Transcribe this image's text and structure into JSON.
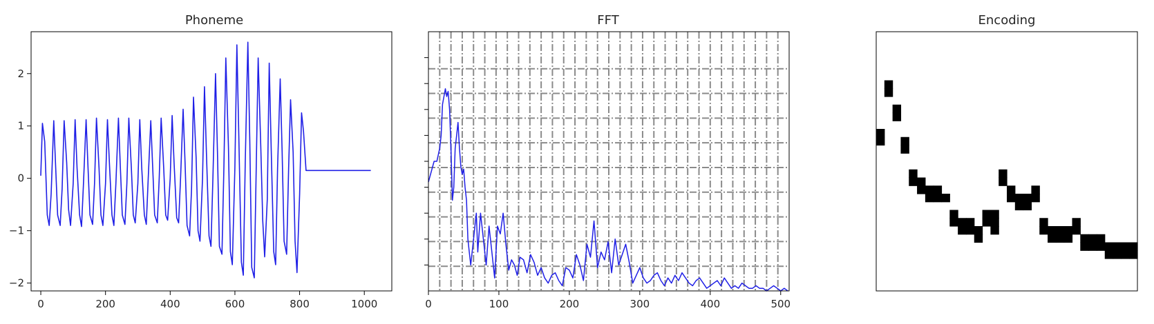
{
  "chart_data": [
    {
      "type": "line",
      "title": "Phoneme",
      "xlabel": "",
      "ylabel": "",
      "xlim": [
        -30,
        1085
      ],
      "ylim": [
        -2.15,
        2.8
      ],
      "xticks": [
        0,
        200,
        400,
        600,
        800,
        1000
      ],
      "yticks": [
        -2,
        -1,
        0,
        1,
        2
      ],
      "xtick_labels": [
        "0",
        "200",
        "400",
        "600",
        "800",
        "1000"
      ],
      "ytick_labels": [
        "−2",
        "−1",
        "0",
        "1",
        "2"
      ],
      "grid": false,
      "line_color": "#1f1fe6",
      "series": [
        {
          "x": [
            0,
            5,
            12,
            20,
            26,
            32,
            40,
            46,
            52,
            60,
            66,
            72,
            80,
            86,
            92,
            100,
            106,
            112,
            120,
            126,
            132,
            140,
            146,
            152,
            160,
            166,
            172,
            180,
            186,
            192,
            200,
            206,
            212,
            220,
            226,
            232,
            240,
            246,
            252,
            260,
            266,
            272,
            280,
            286,
            292,
            300,
            306,
            312,
            320,
            326,
            332,
            340,
            346,
            352,
            360,
            366,
            372,
            380,
            386,
            392,
            400,
            406,
            412,
            420,
            426,
            432,
            440,
            446,
            452,
            460,
            466,
            472,
            480,
            486,
            492,
            500,
            506,
            512,
            520,
            526,
            532,
            540,
            546,
            552,
            560,
            566,
            572,
            580,
            586,
            592,
            600,
            606,
            612,
            620,
            626,
            632,
            640,
            646,
            652,
            660,
            666,
            672,
            680,
            686,
            692,
            700,
            706,
            712,
            720,
            726,
            732,
            740,
            746,
            752,
            760,
            766,
            772,
            780,
            786,
            792,
            800,
            806,
            812,
            820,
            826,
            832,
            840,
            846,
            852,
            860,
            866,
            872,
            880,
            886,
            892,
            900,
            906,
            912,
            920,
            926,
            932,
            940,
            946,
            952,
            960,
            966,
            972,
            980,
            986,
            992,
            1000,
            1006,
            1012,
            1020
          ],
          "y": [
            0.05,
            1.05,
            0.7,
            -0.7,
            -0.9,
            -0.3,
            1.1,
            0.2,
            -0.7,
            -0.9,
            -0.2,
            1.1,
            0.3,
            -0.6,
            -0.9,
            -0.1,
            1.12,
            0.2,
            -0.7,
            -0.92,
            -0.1,
            1.12,
            0.2,
            -0.7,
            -0.88,
            -0.1,
            1.15,
            0.2,
            -0.7,
            -0.9,
            -0.1,
            1.12,
            0.3,
            -0.7,
            -0.9,
            -0.1,
            1.15,
            0.2,
            -0.7,
            -0.88,
            -0.1,
            1.15,
            0.2,
            -0.7,
            -0.85,
            -0.1,
            1.12,
            0.2,
            -0.7,
            -0.88,
            0,
            1.1,
            0.2,
            -0.7,
            -0.85,
            0,
            1.15,
            0.2,
            -0.7,
            -0.8,
            0,
            1.2,
            0.3,
            -0.75,
            -0.85,
            0,
            1.32,
            0.3,
            -0.9,
            -1.1,
            -0.2,
            1.55,
            0.4,
            -1.0,
            -1.2,
            0,
            1.75,
            0.5,
            -1.1,
            -1.3,
            0,
            2.0,
            0.5,
            -1.3,
            -1.45,
            0.2,
            2.3,
            0.6,
            -1.4,
            -1.65,
            0.2,
            2.55,
            0.8,
            -1.6,
            -1.85,
            0.3,
            2.6,
            0.7,
            -1.7,
            -1.9,
            0.2,
            2.3,
            0.6,
            -0.8,
            -1.5,
            -0.4,
            2.2,
            0.6,
            -1.4,
            -1.65,
            0.2,
            1.9,
            0.5,
            -1.2,
            -1.45,
            0.2,
            1.5,
            0.5,
            -1.2,
            -1.8,
            -0.3,
            1.25,
            0.9,
            0.15,
            0.15,
            0.15,
            0.15,
            0.15,
            0.15,
            0.15,
            0.15,
            0.15,
            0.15,
            0.15,
            0.15,
            0.15,
            0.15,
            0.15,
            0.15,
            0.15,
            0.15,
            0.15,
            0.15,
            0.15,
            0.15,
            0.15,
            0.15,
            0.15,
            0.15,
            0.15,
            0.15,
            0.15,
            0.15,
            0.15
          ]
        }
      ]
    },
    {
      "type": "line",
      "title": "FFT",
      "xlabel": "",
      "ylabel": "",
      "xlim": [
        0,
        512
      ],
      "ylim": [
        0,
        1
      ],
      "xticks": [
        0,
        100,
        200,
        300,
        400,
        500
      ],
      "xtick_labels": [
        "0",
        "100",
        "200",
        "300",
        "400",
        "500"
      ],
      "yticks_unlabeled": 9,
      "grid": true,
      "grid_style": "dash-dot",
      "grid_color": "#8a8a8a",
      "line_color": "#1f1fe6",
      "series": [
        {
          "x": [
            0,
            4,
            8,
            12,
            16,
            18,
            20,
            24,
            26,
            28,
            30,
            32,
            34,
            36,
            38,
            40,
            42,
            44,
            46,
            48,
            50,
            52,
            54,
            56,
            58,
            60,
            64,
            68,
            70,
            74,
            78,
            82,
            86,
            90,
            94,
            98,
            102,
            106,
            110,
            114,
            118,
            122,
            126,
            130,
            135,
            140,
            145,
            150,
            155,
            160,
            165,
            170,
            175,
            180,
            185,
            190,
            195,
            200,
            205,
            210,
            215,
            220,
            225,
            230,
            235,
            240,
            245,
            250,
            255,
            260,
            265,
            270,
            275,
            280,
            285,
            290,
            295,
            300,
            305,
            310,
            315,
            320,
            325,
            330,
            335,
            340,
            345,
            350,
            355,
            360,
            365,
            370,
            375,
            380,
            385,
            390,
            395,
            400,
            405,
            410,
            415,
            420,
            425,
            430,
            435,
            440,
            445,
            450,
            455,
            460,
            465,
            470,
            475,
            480,
            485,
            490,
            495,
            500,
            505,
            510
          ],
          "y": [
            0.42,
            0.46,
            0.5,
            0.5,
            0.55,
            0.6,
            0.72,
            0.78,
            0.75,
            0.77,
            0.7,
            0.55,
            0.35,
            0.4,
            0.55,
            0.6,
            0.65,
            0.55,
            0.48,
            0.45,
            0.47,
            0.4,
            0.35,
            0.2,
            0.15,
            0.1,
            0.2,
            0.3,
            0.15,
            0.3,
            0.2,
            0.1,
            0.25,
            0.15,
            0.05,
            0.25,
            0.22,
            0.3,
            0.18,
            0.08,
            0.12,
            0.1,
            0.06,
            0.13,
            0.12,
            0.07,
            0.14,
            0.11,
            0.06,
            0.09,
            0.05,
            0.03,
            0.06,
            0.07,
            0.04,
            0.02,
            0.09,
            0.08,
            0.05,
            0.14,
            0.1,
            0.04,
            0.18,
            0.13,
            0.27,
            0.09,
            0.15,
            0.12,
            0.19,
            0.07,
            0.2,
            0.1,
            0.14,
            0.18,
            0.11,
            0.03,
            0.06,
            0.09,
            0.05,
            0.03,
            0.04,
            0.06,
            0.07,
            0.04,
            0.02,
            0.05,
            0.03,
            0.06,
            0.04,
            0.07,
            0.05,
            0.03,
            0.02,
            0.04,
            0.05,
            0.03,
            0.01,
            0.02,
            0.03,
            0.04,
            0.02,
            0.05,
            0.03,
            0.01,
            0.02,
            0.01,
            0.03,
            0.02,
            0.01,
            0.01,
            0.02,
            0.01,
            0.01,
            0.0,
            0.01,
            0.02,
            0.01,
            0.0,
            0.01,
            0.0
          ]
        }
      ]
    },
    {
      "type": "heatmap",
      "title": "Encoding",
      "xlabel": "",
      "ylabel": "",
      "grid": false,
      "columns": 32,
      "rows": 32,
      "active_cells": [
        [
          0,
          12
        ],
        [
          0,
          13
        ],
        [
          1,
          6
        ],
        [
          1,
          7
        ],
        [
          2,
          9
        ],
        [
          2,
          10
        ],
        [
          3,
          13
        ],
        [
          3,
          14
        ],
        [
          4,
          17
        ],
        [
          4,
          18
        ],
        [
          5,
          18
        ],
        [
          5,
          19
        ],
        [
          6,
          19
        ],
        [
          6,
          20
        ],
        [
          7,
          19
        ],
        [
          7,
          20
        ],
        [
          8,
          20
        ],
        [
          9,
          22
        ],
        [
          9,
          23
        ],
        [
          10,
          23
        ],
        [
          10,
          24
        ],
        [
          11,
          23
        ],
        [
          11,
          24
        ],
        [
          12,
          24
        ],
        [
          12,
          25
        ],
        [
          13,
          22
        ],
        [
          13,
          23
        ],
        [
          14,
          22
        ],
        [
          14,
          23
        ],
        [
          14,
          24
        ],
        [
          15,
          17
        ],
        [
          15,
          18
        ],
        [
          16,
          19
        ],
        [
          16,
          20
        ],
        [
          17,
          20
        ],
        [
          17,
          21
        ],
        [
          18,
          20
        ],
        [
          18,
          21
        ],
        [
          19,
          19
        ],
        [
          19,
          20
        ],
        [
          20,
          23
        ],
        [
          20,
          24
        ],
        [
          21,
          24
        ],
        [
          21,
          25
        ],
        [
          22,
          24
        ],
        [
          22,
          25
        ],
        [
          23,
          24
        ],
        [
          23,
          25
        ],
        [
          24,
          23
        ],
        [
          24,
          24
        ],
        [
          25,
          25
        ],
        [
          25,
          26
        ],
        [
          26,
          25
        ],
        [
          26,
          26
        ],
        [
          27,
          25
        ],
        [
          27,
          26
        ],
        [
          28,
          26
        ],
        [
          28,
          27
        ],
        [
          29,
          26
        ],
        [
          29,
          27
        ],
        [
          30,
          26
        ],
        [
          30,
          27
        ],
        [
          31,
          26
        ],
        [
          31,
          27
        ]
      ]
    }
  ]
}
